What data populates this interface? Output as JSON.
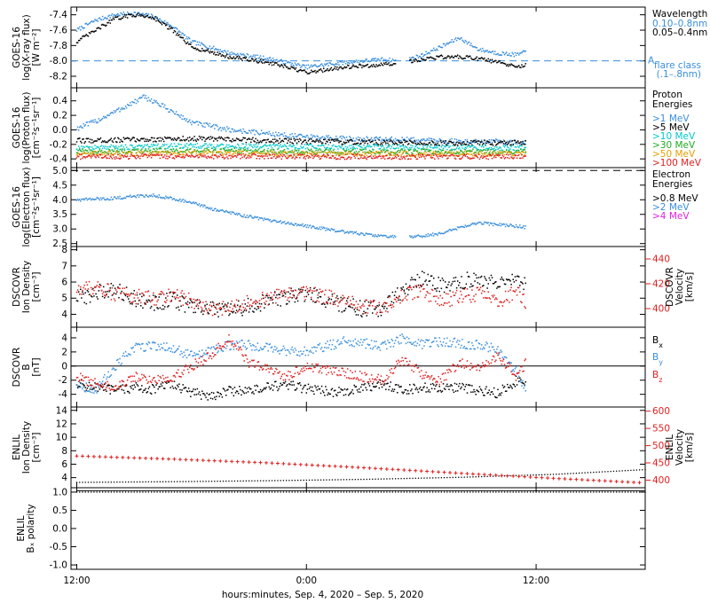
{
  "xaxis": {
    "title": "hours:minutes, Sep.  4, 2020 – Sep.  5, 2020",
    "tick_labels": [
      "12:00",
      "0:00",
      "12:00"
    ],
    "tick_hours": [
      0,
      12,
      24
    ],
    "range_hours": [
      -0.3,
      29.7
    ],
    "data_end_hour": 23.5
  },
  "chart_data": [
    {
      "type": "scatter",
      "id": "xray",
      "ylabel": [
        "GOES-16",
        "log(X-ray flux)",
        "[W m⁻²]"
      ],
      "ylim": [
        -8.35,
        -7.3
      ],
      "yticks": [
        -7.4,
        -7.6,
        -7.8,
        -8.0,
        -8.2
      ],
      "ytick_labels": [
        "-7.4",
        "-7.6",
        "-7.8",
        "-8.0",
        "-8.2"
      ],
      "legend_title": "Wavelength",
      "series": [
        {
          "name": "0.10–0.8nm",
          "color": "#3a8fdc",
          "x": [
            0,
            1,
            2,
            3,
            4,
            5,
            6,
            8,
            10,
            12,
            14,
            16,
            17,
            18,
            19,
            20,
            21,
            22,
            23,
            23.5
          ],
          "y": [
            -7.6,
            -7.47,
            -7.4,
            -7.38,
            -7.42,
            -7.55,
            -7.75,
            -7.9,
            -7.97,
            -8.08,
            -8.02,
            -7.98,
            -8.0,
            -7.93,
            -7.82,
            -7.7,
            -7.85,
            -7.9,
            -7.92,
            -7.88
          ]
        },
        {
          "name": "0.05–0.4nm",
          "color": "#000000",
          "x": [
            0,
            1,
            2,
            3,
            4,
            5,
            6,
            8,
            10,
            12,
            14,
            16,
            17,
            18,
            19,
            20,
            21,
            22,
            23,
            23.5
          ],
          "y": [
            -7.75,
            -7.6,
            -7.45,
            -7.4,
            -7.43,
            -7.6,
            -7.82,
            -7.95,
            -8.02,
            -8.15,
            -8.08,
            -8.05,
            -8.02,
            -7.98,
            -7.95,
            -7.95,
            -7.97,
            -8.02,
            -8.08,
            -8.05
          ]
        }
      ],
      "threshold": {
        "value": -8.0,
        "label_right": "A",
        "label": [
          "flare class",
          "(.1–.8nm)"
        ],
        "color": "#3a8fdc"
      }
    },
    {
      "type": "scatter",
      "id": "proton",
      "ylabel": [
        "GOES-16",
        "log(Proton flux)",
        "[cm⁻²s⁻¹sr⁻¹]"
      ],
      "ylim": [
        -0.52,
        0.58
      ],
      "yticks": [
        0.4,
        0.2,
        0.0,
        -0.2,
        -0.4
      ],
      "ytick_labels": [
        "0.4",
        "0.2",
        "0.0",
        "-0.2",
        "-0.4"
      ],
      "legend_title": "Proton Energies",
      "series": [
        {
          "name": ">1 MeV",
          "color": "#3a8fdc",
          "x": [
            0,
            1,
            2,
            3,
            3.5,
            4,
            5,
            6,
            8,
            10,
            12,
            14,
            16,
            18,
            20,
            22,
            23.5
          ],
          "y": [
            0.02,
            0.12,
            0.25,
            0.38,
            0.45,
            0.4,
            0.25,
            0.1,
            0.0,
            -0.05,
            -0.1,
            -0.12,
            -0.13,
            -0.14,
            -0.16,
            -0.16,
            -0.18
          ]
        },
        {
          "name": ">5 MeV",
          "color": "#000000",
          "x": [
            0,
            6,
            12,
            18,
            23.5
          ],
          "y": [
            -0.15,
            -0.12,
            -0.16,
            -0.18,
            -0.18
          ]
        },
        {
          "name": ">10 MeV",
          "color": "#00c8c8",
          "x": [
            0,
            6,
            12,
            18,
            23.5
          ],
          "y": [
            -0.25,
            -0.22,
            -0.23,
            -0.24,
            -0.25
          ]
        },
        {
          "name": ">30 MeV",
          "color": "#22aa22",
          "x": [
            0,
            6,
            12,
            18,
            23.5
          ],
          "y": [
            -0.3,
            -0.28,
            -0.3,
            -0.3,
            -0.3
          ]
        },
        {
          "name": ">50 MeV",
          "color": "#e0a000",
          "x": [
            0,
            6,
            12,
            18,
            23.5
          ],
          "y": [
            -0.33,
            -0.32,
            -0.33,
            -0.33,
            -0.33
          ]
        },
        {
          "name": ">100 MeV",
          "color": "#e02020",
          "x": [
            0,
            6,
            12,
            18,
            23.5
          ],
          "y": [
            -0.37,
            -0.36,
            -0.37,
            -0.37,
            -0.37
          ]
        }
      ]
    },
    {
      "type": "scatter",
      "id": "electron",
      "ylabel": [
        "GOES-16",
        "log(Electron flux)",
        "[cm⁻²s⁻¹sr⁻¹]"
      ],
      "ylim": [
        2.4,
        5.1
      ],
      "yticks": [
        5.0,
        4.5,
        4.0,
        3.5,
        3.0,
        2.5
      ],
      "ytick_labels": [
        "5.0",
        "4.5",
        "4.0",
        "3.5",
        "3.0",
        "2.5"
      ],
      "legend_title": "Electron Energies",
      "threshold": {
        "value": 5.0,
        "color": "#000000"
      },
      "series": [
        {
          "name": ">0.8 MeV",
          "color": "#000000",
          "x": [],
          "y": []
        },
        {
          "name": ">2 MeV",
          "color": "#3a8fdc",
          "x": [
            0,
            2,
            3,
            4,
            5,
            6,
            7,
            8,
            10,
            12,
            14,
            16,
            17,
            18,
            19,
            20,
            21,
            22,
            23,
            23.5
          ],
          "y": [
            4.0,
            4.05,
            4.12,
            4.15,
            4.05,
            3.9,
            3.7,
            3.55,
            3.3,
            3.1,
            2.9,
            2.75,
            2.72,
            2.75,
            2.85,
            3.05,
            3.2,
            3.15,
            3.1,
            3.05
          ]
        },
        {
          "name": ">4 MeV",
          "color": "#e020e0",
          "x": [],
          "y": []
        }
      ]
    },
    {
      "type": "scatter",
      "id": "dscovr-density",
      "ylabel": [
        "DSCOVR",
        "Ion Density",
        "[cm⁻³]"
      ],
      "ylim": [
        3.2,
        8.2
      ],
      "yticks": [
        8,
        7,
        6,
        5,
        4
      ],
      "ytick_labels": [
        "8",
        "7",
        "6",
        "5",
        "4"
      ],
      "y2label": [
        "DSCOVR",
        "Velocity",
        "[km/s]"
      ],
      "y2lim": [
        385,
        450
      ],
      "y2ticks": [
        440,
        420,
        400
      ],
      "y2tick_labels": [
        "440",
        "420",
        "400"
      ],
      "series": [
        {
          "name": "Ion Density",
          "axis": "left",
          "color": "#000000",
          "x": [
            0,
            1,
            2,
            3,
            4,
            5,
            6,
            7,
            8,
            9,
            10,
            11,
            12,
            13,
            14,
            15,
            16,
            17,
            18,
            19,
            20,
            21,
            22,
            23,
            23.5
          ],
          "y": [
            5.0,
            5.3,
            5.6,
            5.0,
            4.7,
            4.9,
            4.5,
            4.3,
            4.2,
            4.5,
            4.8,
            5.1,
            5.3,
            4.9,
            4.6,
            4.3,
            4.4,
            5.5,
            6.2,
            5.8,
            6.0,
            6.3,
            5.8,
            6.1,
            5.9
          ]
        },
        {
          "name": "Velocity",
          "axis": "right",
          "color": "#e02020",
          "x": [
            0,
            1,
            2,
            3,
            4,
            5,
            6,
            7,
            8,
            9,
            10,
            11,
            12,
            13,
            14,
            15,
            16,
            17,
            18,
            19,
            20,
            21,
            22,
            23,
            23.5
          ],
          "y": [
            415,
            418,
            412,
            410,
            408,
            412,
            406,
            398,
            402,
            405,
            408,
            412,
            413,
            410,
            405,
            402,
            400,
            410,
            415,
            405,
            410,
            412,
            405,
            415,
            403
          ]
        }
      ]
    },
    {
      "type": "scatter",
      "id": "dscovr-b",
      "ylabel": [
        "DSCOVR",
        "B",
        "[nT]"
      ],
      "ylim": [
        -5.8,
        5.5
      ],
      "yticks": [
        4,
        2,
        0,
        -2,
        -4
      ],
      "ytick_labels": [
        "4",
        "2",
        "0",
        "-2",
        "-4"
      ],
      "zero_line": true,
      "series": [
        {
          "name": "Bx",
          "label_main": "B",
          "label_sub": "x",
          "color": "#000000",
          "x": [
            0,
            1,
            2,
            3,
            4,
            5,
            6,
            7,
            8,
            9,
            10,
            11,
            12,
            13,
            14,
            15,
            16,
            17,
            18,
            19,
            20,
            21,
            22,
            23,
            23.5
          ],
          "y": [
            -2.5,
            -3.0,
            -3.5,
            -3.0,
            -3.3,
            -2.5,
            -3.8,
            -4.2,
            -3.5,
            -3.5,
            -3.0,
            -2.7,
            -3.2,
            -3.5,
            -3.8,
            -3.0,
            -2.5,
            -3.5,
            -3.0,
            -3.2,
            -3.0,
            -3.5,
            -3.8,
            -2.0,
            -2.5
          ]
        },
        {
          "name": "By",
          "label_main": "B",
          "label_sub": "y",
          "color": "#3a8fdc",
          "x": [
            0,
            1,
            2,
            3,
            4,
            5,
            6,
            7,
            8,
            9,
            10,
            11,
            12,
            13,
            14,
            15,
            16,
            17,
            18,
            19,
            20,
            21,
            22,
            23,
            23.5
          ],
          "y": [
            -2.5,
            -3.5,
            0.0,
            2.5,
            3.0,
            2.5,
            1.5,
            2.0,
            3.0,
            3.0,
            2.5,
            2.2,
            2.0,
            2.8,
            3.5,
            3.2,
            2.8,
            3.8,
            3.0,
            3.5,
            3.2,
            3.0,
            2.5,
            -1.0,
            -3.5
          ]
        },
        {
          "name": "Bz",
          "label_main": "B",
          "label_sub": "z",
          "color": "#e02020",
          "x": [
            0,
            1,
            2,
            3,
            4,
            5,
            6,
            7,
            8,
            9,
            10,
            11,
            12,
            13,
            14,
            15,
            16,
            17,
            18,
            19,
            20,
            21,
            22,
            23,
            23.5
          ],
          "y": [
            -1.5,
            -2.5,
            -3.0,
            -1.5,
            -2.0,
            -1.5,
            0.0,
            1.5,
            4.0,
            0.5,
            -0.5,
            -1.5,
            0.0,
            -0.5,
            -1.0,
            -1.5,
            -2.0,
            1.0,
            -1.0,
            -2.0,
            0.5,
            -0.5,
            1.5,
            -1.5,
            0.5
          ]
        }
      ]
    },
    {
      "type": "scatter",
      "id": "enlil-density",
      "ylabel": [
        "ENLIL",
        "Ion Density",
        "[cm⁻³]"
      ],
      "ylim": [
        2.5,
        14.5
      ],
      "yticks": [
        14,
        12,
        10,
        8,
        6,
        4
      ],
      "ytick_labels": [
        "14",
        "12",
        "10",
        "8",
        "6",
        "4"
      ],
      "y2label": [
        "ENLIL",
        "Velocity",
        "[km/s]"
      ],
      "y2lim": [
        378,
        612
      ],
      "y2ticks": [
        600,
        550,
        500,
        450,
        400
      ],
      "y2tick_labels": [
        "600",
        "550",
        "500",
        "450",
        "400"
      ],
      "series": [
        {
          "name": "Ion Density",
          "axis": "left",
          "color": "#000000",
          "x": [
            0,
            5,
            10,
            15,
            20,
            25,
            29.7
          ],
          "y": [
            3.3,
            3.4,
            3.55,
            3.75,
            4.05,
            4.5,
            5.2
          ]
        },
        {
          "name": "Velocity",
          "axis": "right",
          "color": "#e02020",
          "x": [
            0,
            5,
            10,
            15,
            20,
            25,
            29.7
          ],
          "y": [
            470,
            461,
            450,
            436,
            420,
            405,
            392
          ]
        }
      ]
    },
    {
      "type": "scatter",
      "id": "enlil-polarity",
      "ylabel": [
        "ENLIL",
        "Bₓ polarity"
      ],
      "ylim": [
        -1.12,
        1.12
      ],
      "yticks": [
        1.0,
        0.5,
        0.0,
        -0.5,
        -1.0
      ],
      "ytick_labels": [
        "1.0",
        "0.5",
        "0.0",
        "-0.5",
        "-1.0"
      ],
      "series": [
        {
          "name": "polarity",
          "color": "#000000",
          "x": [
            0,
            29.7
          ],
          "y": [
            1.0,
            1.0
          ]
        }
      ]
    }
  ]
}
